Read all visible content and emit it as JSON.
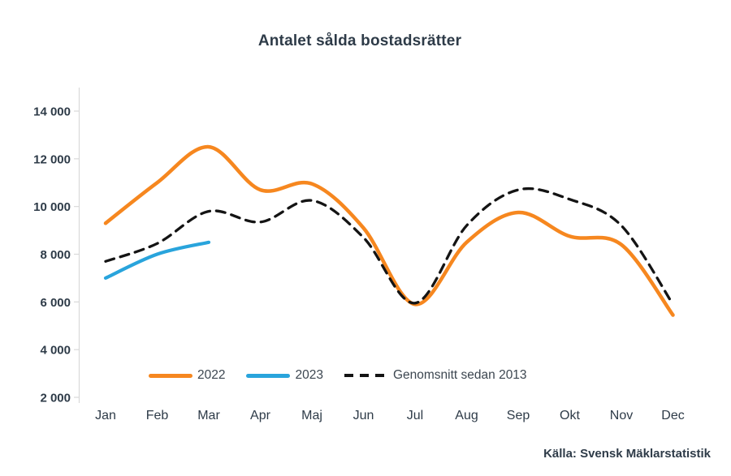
{
  "title": "Antalet sålda bostadsrätter",
  "source": "Källa: Svensk Mäklarstatistik",
  "chart_data": {
    "type": "line",
    "title": "Antalet sålda bostadsrätter",
    "categories": [
      "Jan",
      "Feb",
      "Mar",
      "Apr",
      "Maj",
      "Jun",
      "Jul",
      "Aug",
      "Sep",
      "Okt",
      "Nov",
      "Dec"
    ],
    "series": [
      {
        "name": "2022",
        "color": "#F6871F",
        "style": "solid",
        "values": [
          9300,
          11000,
          12500,
          10700,
          10950,
          9100,
          5900,
          8500,
          9750,
          8750,
          8400,
          5450
        ]
      },
      {
        "name": "2023",
        "color": "#29A4DC",
        "style": "solid",
        "values": [
          7000,
          8000,
          8500,
          null,
          null,
          null,
          null,
          null,
          null,
          null,
          null,
          null
        ]
      },
      {
        "name": "Genomsnitt sedan 2013",
        "color": "#141414",
        "style": "dashed",
        "values": [
          7700,
          8450,
          9800,
          9350,
          10250,
          8700,
          5950,
          9200,
          10700,
          10300,
          9200,
          5900
        ]
      }
    ],
    "y_ticks": [
      14000,
      12000,
      10000,
      8000,
      6000,
      4000,
      2000
    ],
    "y_tick_labels": [
      "14 000",
      "12 000",
      "10 000",
      "8 000",
      "6 000",
      "4 000",
      "2 000"
    ],
    "ylim": [
      2000,
      14000
    ],
    "grid": false,
    "legend_position": "bottom",
    "axis_color": "#D9D9D9",
    "text_color": "#2E3B48"
  }
}
